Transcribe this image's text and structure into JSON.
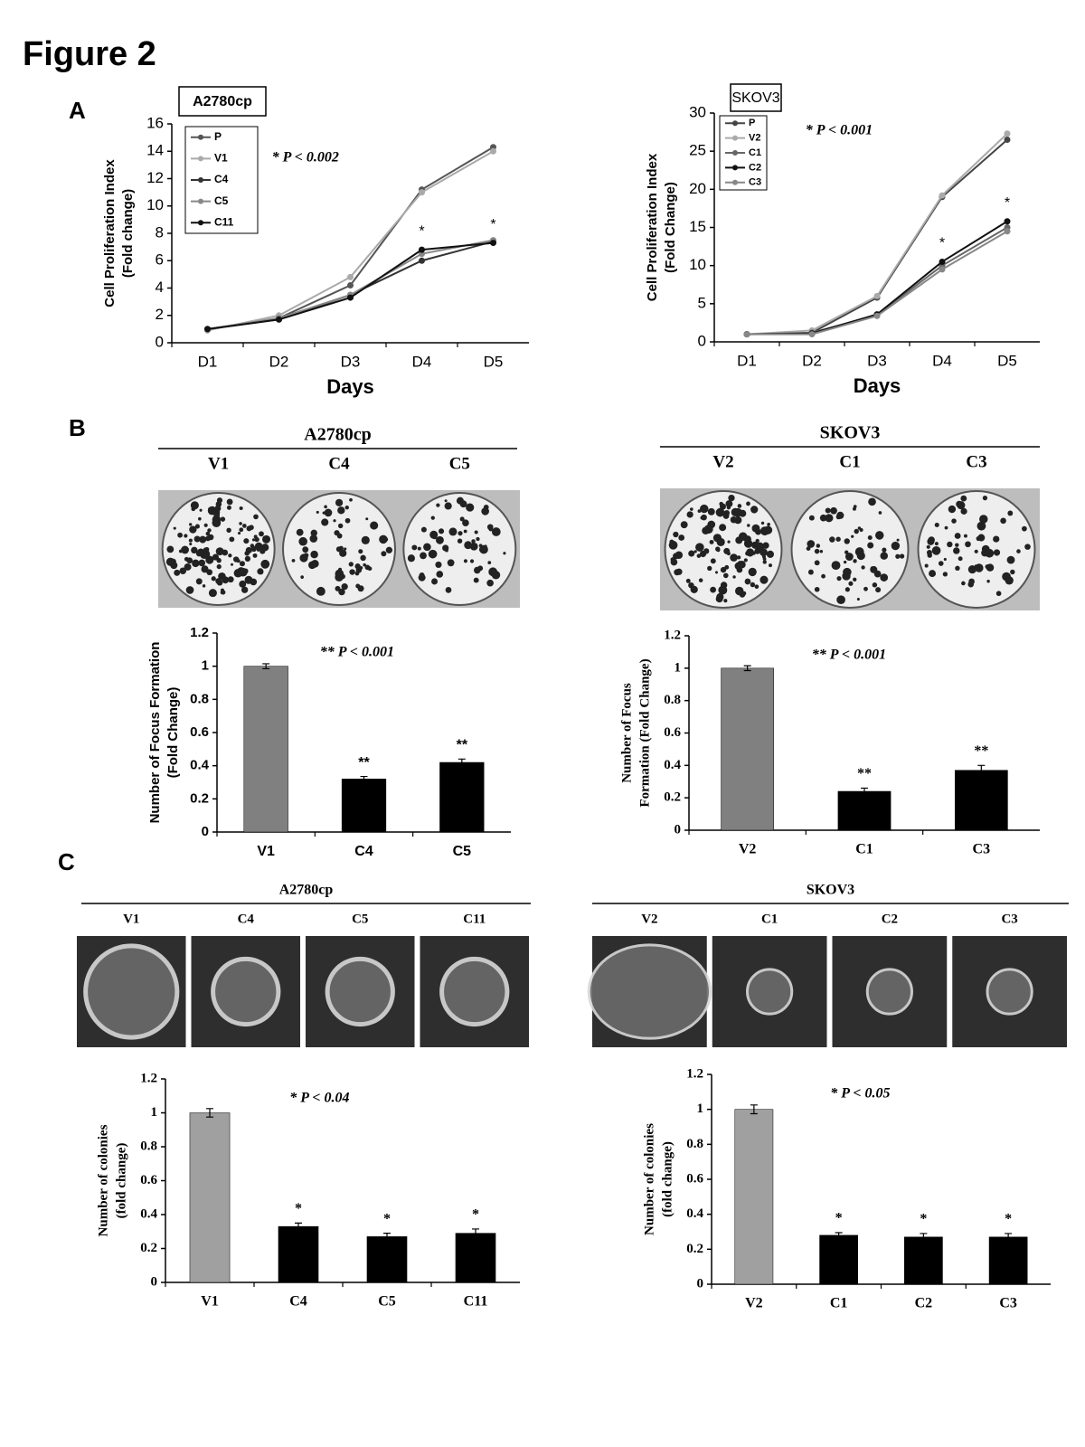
{
  "title": "Figure 2",
  "panel_labels": [
    "A",
    "B",
    "C"
  ],
  "photo_groups": [
    {
      "title": "A2780cp",
      "labels": [
        "V1",
        "C4",
        "C5"
      ]
    },
    {
      "title": "SKOV3",
      "labels": [
        "V2",
        "C1",
        "C3"
      ]
    },
    {
      "title": "A2780cp",
      "labels": [
        "V1",
        "C4",
        "C5",
        "C11"
      ]
    },
    {
      "title": "SKOV3",
      "labels": [
        "V2",
        "C1",
        "C2",
        "C3"
      ]
    }
  ],
  "chart_data": [
    {
      "type": "line",
      "title": "A2780cp",
      "annotation": "* P < 0.002",
      "y_label": [
        "Cell Proliferation Index",
        "(Fold change)"
      ],
      "x_label": "Days",
      "categories": [
        "D1",
        "D2",
        "D3",
        "D4",
        "D5"
      ],
      "ylim": [
        0,
        16
      ],
      "yticks": [
        0,
        2,
        4,
        6,
        8,
        10,
        12,
        14,
        16
      ],
      "series": [
        {
          "name": "P",
          "color": "#555555",
          "values": [
            1,
            1.8,
            4.2,
            11.2,
            14.3
          ]
        },
        {
          "name": "V1",
          "color": "#aaaaaa",
          "values": [
            0.9,
            2.0,
            4.8,
            11.0,
            14.0
          ]
        },
        {
          "name": "C4",
          "color": "#333333",
          "values": [
            1,
            1.7,
            3.5,
            6.0,
            7.4
          ]
        },
        {
          "name": "C5",
          "color": "#888888",
          "values": [
            1,
            1.8,
            3.5,
            6.5,
            7.5
          ]
        },
        {
          "name": "C11",
          "color": "#111111",
          "values": [
            1,
            1.7,
            3.3,
            6.8,
            7.3
          ],
          "stars": [
            null,
            null,
            null,
            "*",
            "*"
          ]
        }
      ]
    },
    {
      "type": "line",
      "title": "SKOV3",
      "annotation": "* P < 0.001",
      "y_label": [
        "Cell Proliferation Index",
        "(Fold Change)"
      ],
      "x_label": "Days",
      "categories": [
        "D1",
        "D2",
        "D3",
        "D4",
        "D5"
      ],
      "ylim": [
        0,
        30
      ],
      "yticks": [
        0,
        5,
        10,
        15,
        20,
        25,
        30
      ],
      "series": [
        {
          "name": "P",
          "color": "#444444",
          "values": [
            1,
            1.2,
            5.8,
            19,
            26.5
          ]
        },
        {
          "name": "V2",
          "color": "#aaaaaa",
          "values": [
            1,
            1.5,
            6,
            19.2,
            27.3
          ]
        },
        {
          "name": "C1",
          "color": "#666666",
          "values": [
            1,
            1.2,
            3.5,
            10,
            15
          ]
        },
        {
          "name": "C2",
          "color": "#111111",
          "values": [
            1,
            1.1,
            3.6,
            10.5,
            15.8
          ],
          "stars": [
            null,
            null,
            null,
            "*",
            "*"
          ]
        },
        {
          "name": "C3",
          "color": "#888888",
          "values": [
            1,
            1.0,
            3.4,
            9.5,
            14.5
          ]
        }
      ]
    },
    {
      "type": "bar",
      "annotation": "** P < 0.001",
      "y_label": [
        "Number of Focus Formation",
        "(Fold Change)"
      ],
      "categories": [
        "V1",
        "C4",
        "C5"
      ],
      "values": [
        1,
        0.32,
        0.42
      ],
      "errors": [
        0.015,
        0.015,
        0.02
      ],
      "colors": [
        "#808080",
        "#000000",
        "#000000"
      ],
      "stars": [
        null,
        "**",
        "**"
      ],
      "ylim": [
        0,
        1.2
      ],
      "yticks": [
        0,
        0.2,
        0.4,
        0.6,
        0.8,
        1,
        1.2
      ]
    },
    {
      "type": "bar",
      "annotation": "** P < 0.001",
      "y_label": [
        "Number of Focus",
        "Formation (Fold Change)"
      ],
      "categories": [
        "V2",
        "C1",
        "C3"
      ],
      "values": [
        1,
        0.24,
        0.37
      ],
      "errors": [
        0.015,
        0.02,
        0.03
      ],
      "colors": [
        "#808080",
        "#000000",
        "#000000"
      ],
      "stars": [
        null,
        "**",
        "**"
      ],
      "ylim": [
        0,
        1.2
      ],
      "yticks": [
        0,
        0.2,
        0.4,
        0.6,
        0.8,
        1,
        1.2
      ]
    },
    {
      "type": "bar",
      "annotation": "* P < 0.04",
      "y_label": [
        "Number of colonies",
        "(fold change)"
      ],
      "categories": [
        "V1",
        "C4",
        "C5",
        "C11"
      ],
      "values": [
        1,
        0.33,
        0.27,
        0.29
      ],
      "errors": [
        0.025,
        0.02,
        0.02,
        0.025
      ],
      "colors": [
        "#a0a0a0",
        "#000000",
        "#000000",
        "#000000"
      ],
      "stars": [
        null,
        "*",
        "*",
        "*"
      ],
      "ylim": [
        0,
        1.2
      ],
      "yticks": [
        0,
        0.2,
        0.4,
        0.6,
        0.8,
        1,
        1.2
      ]
    },
    {
      "type": "bar",
      "annotation": "* P < 0.05",
      "y_label": [
        "Number of colonies",
        "(fold change)"
      ],
      "categories": [
        "V2",
        "C1",
        "C2",
        "C3"
      ],
      "values": [
        1,
        0.28,
        0.27,
        0.27
      ],
      "errors": [
        0.025,
        0.015,
        0.02,
        0.02
      ],
      "colors": [
        "#a0a0a0",
        "#000000",
        "#000000",
        "#000000"
      ],
      "stars": [
        null,
        "*",
        "*",
        "*"
      ],
      "ylim": [
        0,
        1.2
      ],
      "yticks": [
        0,
        0.2,
        0.4,
        0.6,
        0.8,
        1,
        1.2
      ]
    }
  ]
}
